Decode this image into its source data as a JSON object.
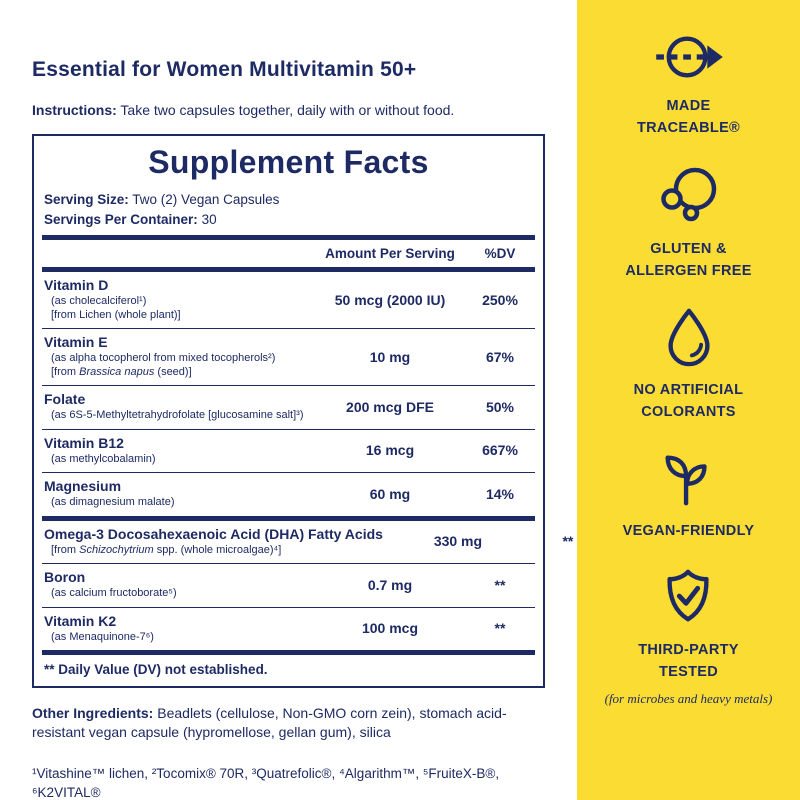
{
  "colors": {
    "navy": "#1E2A63",
    "yellow": "#FBDC33",
    "background": "#FFFFFF"
  },
  "header": {
    "title": "Essential for Women Multivitamin 50+",
    "instructions_label": "Instructions:",
    "instructions_text": "Take two capsules together, daily with or without food."
  },
  "facts": {
    "title": "Supplement Facts",
    "serving_size_label": "Serving Size:",
    "serving_size_value": "Two (2) Vegan Capsules",
    "servings_per_container_label": "Servings Per Container:",
    "servings_per_container_value": "30",
    "col_amount": "Amount Per Serving",
    "col_dv": "%DV",
    "rows_primary": [
      {
        "name": "Vitamin D",
        "details": [
          "(as cholecalciferol¹)",
          "[from Lichen (whole plant)]"
        ],
        "amount": "50 mcg (2000 IU)",
        "dv": "250%"
      },
      {
        "name": "Vitamin E",
        "details": [
          "(as alpha tocopherol from mixed tocopherols²)",
          "[from <i>Brassica napus</i> (seed)]"
        ],
        "amount": "10 mg",
        "dv": "67%"
      },
      {
        "name": "Folate",
        "details": [
          "(as 6S-5-Methyltetrahydrofolate [glucosamine salt]³)"
        ],
        "amount": "200 mcg DFE",
        "dv": "50%"
      },
      {
        "name": "Vitamin B12",
        "details": [
          "(as methylcobalamin)"
        ],
        "amount": "16 mcg",
        "dv": "667%"
      },
      {
        "name": "Magnesium",
        "details": [
          "(as dimagnesium malate)"
        ],
        "amount": "60 mg",
        "dv": "14%"
      }
    ],
    "rows_secondary": [
      {
        "name": "Omega-3 Docosahexaenoic Acid (DHA) Fatty Acids",
        "details": [
          "[from <i>Schizochytrium</i> spp. (whole microalgae)⁴]"
        ],
        "amount": "330 mg",
        "dv": "**"
      },
      {
        "name": "Boron",
        "details": [
          "(as calcium fructoborate⁵)"
        ],
        "amount": "0.7 mg",
        "dv": "**"
      },
      {
        "name": "Vitamin K2",
        "details": [
          "(as Menaquinone-7⁶)"
        ],
        "amount": "100 mcg",
        "dv": "**"
      }
    ],
    "dv_note": "** Daily Value (DV) not established."
  },
  "other_ingredients": {
    "label": "Other Ingredients:",
    "text": "Beadlets (cellulose, Non-GMO corn zein), stomach acid-resistant vegan capsule (hypromellose, gellan gum), silica"
  },
  "footnotes": "¹Vitashine™ lichen, ²Tocomix® 70R, ³Quatrefolic®, ⁴Algarithm™, ⁵FruiteX-B®, ⁶K2VITAL®",
  "sidebar": {
    "badges": [
      {
        "label": "MADE TRACEABLE®",
        "icon": "traceable-arrow-icon"
      },
      {
        "label": "GLUTEN & ALLERGEN FREE",
        "icon": "molecule-circles-icon"
      },
      {
        "label": "NO ARTIFICIAL COLORANTS",
        "icon": "droplet-icon"
      },
      {
        "label": "VEGAN-FRIENDLY",
        "icon": "sprout-icon"
      },
      {
        "label": "THIRD-PARTY TESTED",
        "icon": "shield-check-icon",
        "note": "(for microbes and heavy metals)"
      }
    ]
  }
}
